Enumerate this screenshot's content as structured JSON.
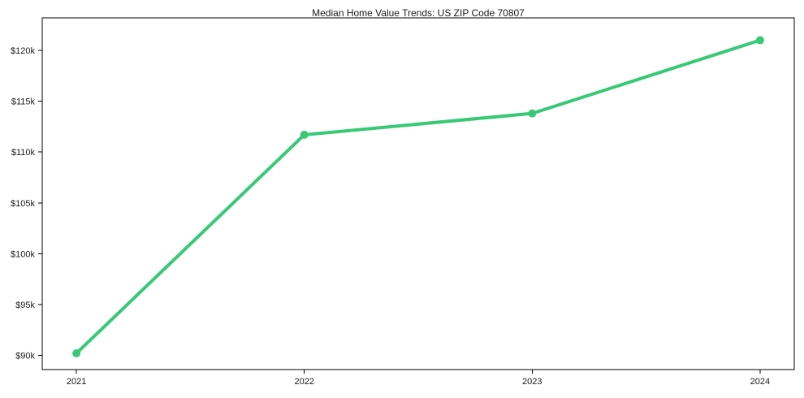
{
  "page": {
    "background": "#ffffff"
  },
  "chart_data": {
    "type": "line",
    "title": "Median Home Value Trends: US ZIP Code 70807",
    "x": [
      2021,
      2022,
      2023,
      2024
    ],
    "x_tick_labels": [
      "2021",
      "2022",
      "2023",
      "2024"
    ],
    "series": [
      {
        "values": [
          90200,
          111700,
          113800,
          121000
        ],
        "color": "#38c977"
      }
    ],
    "y_ticks": [
      90000,
      95000,
      100000,
      105000,
      110000,
      115000,
      120000
    ],
    "y_tick_labels": [
      "$90k",
      "$95k",
      "$100k",
      "$105k",
      "$110k",
      "$115k",
      "$120k"
    ],
    "xlim": [
      2020.85,
      2024.15
    ],
    "ylim": [
      88600,
      123200
    ],
    "grid": false,
    "legend": "none",
    "marker": "circle",
    "line_width": 4,
    "marker_radius": 5,
    "tick_length": 5,
    "axis_color": "#000000",
    "text_color": "#1a1a1a",
    "title_font_size": 12,
    "tick_font_size": 11
  }
}
